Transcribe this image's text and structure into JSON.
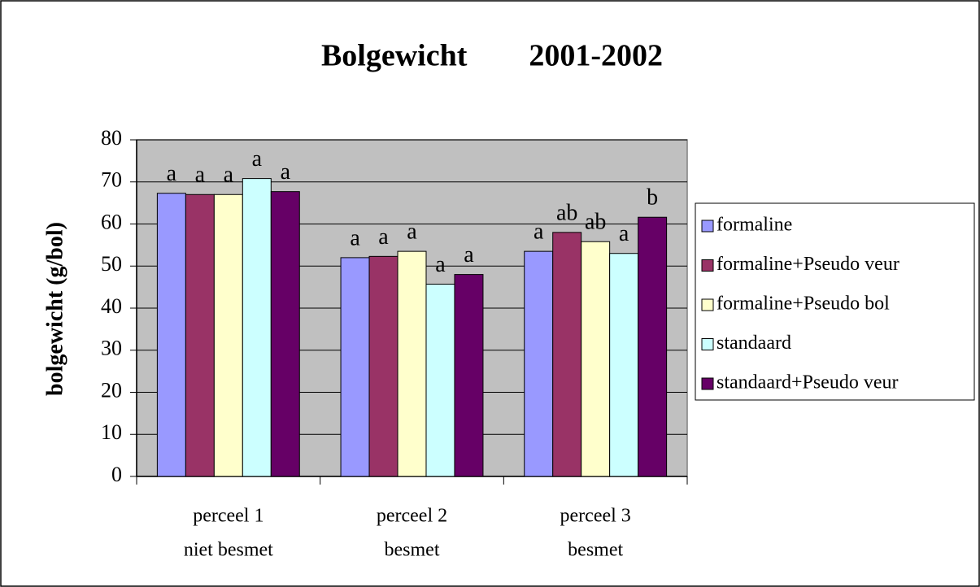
{
  "chart_data": {
    "type": "bar",
    "title": "Bolgewicht        2001-2002",
    "y_label": "bolgewicht (g/bol)",
    "categories": [
      [
        "perceel 1",
        "niet besmet"
      ],
      [
        "perceel 2",
        "besmet"
      ],
      [
        "perceel 3",
        "besmet"
      ]
    ],
    "series": [
      {
        "name": "formaline",
        "color": "#9999ff",
        "values": [
          67.3,
          52,
          53.5
        ],
        "letters": [
          "a",
          "a",
          "a"
        ]
      },
      {
        "name": "formaline+Pseudo veur",
        "color": "#993366",
        "values": [
          67,
          52.3,
          58
        ],
        "letters": [
          "a",
          "a",
          "ab"
        ]
      },
      {
        "name": "formaline+Pseudo bol",
        "color": "#ffffcc",
        "values": [
          67,
          53.5,
          55.8
        ],
        "letters": [
          "a",
          "a",
          "ab"
        ]
      },
      {
        "name": "standaard",
        "color": "#ccffff",
        "values": [
          70.8,
          45.7,
          53
        ],
        "letters": [
          "a",
          "a",
          "a"
        ]
      },
      {
        "name": "standaard+Pseudo veur",
        "color": "#660066",
        "values": [
          67.7,
          48,
          61.6
        ],
        "letters": [
          "a",
          "a",
          "b"
        ]
      }
    ],
    "ylim": [
      0,
      80
    ],
    "yticks": [
      0,
      10,
      20,
      30,
      40,
      50,
      60,
      70,
      80
    ],
    "grid": true,
    "legend": "right"
  }
}
